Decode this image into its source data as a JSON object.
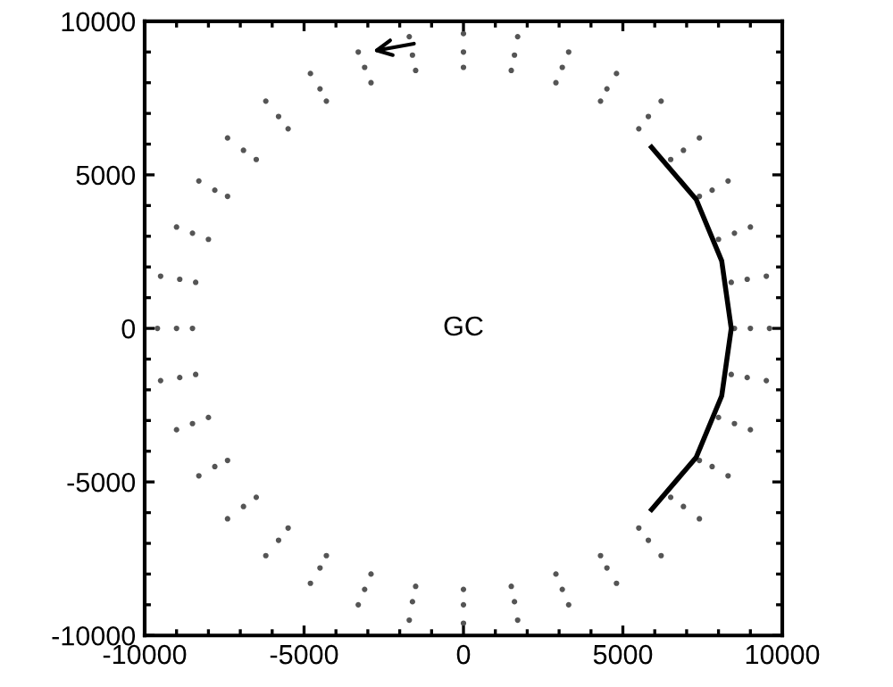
{
  "chart_data": {
    "type": "scatter",
    "xlim": [
      -10000,
      10000
    ],
    "ylim": [
      -10000,
      10000
    ],
    "xticks": [
      -10000,
      -5000,
      0,
      5000,
      10000
    ],
    "yticks": [
      -10000,
      -5000,
      0,
      5000,
      10000
    ],
    "grid": false,
    "legend": false,
    "annotations": [
      "GC"
    ],
    "series": [
      {
        "color": "#555555",
        "marker": "circle",
        "x": [
          8500,
          8400,
          8000,
          7400,
          6500,
          5500,
          4300,
          2900,
          1500,
          0,
          -1500,
          -2900,
          -4300,
          -5500,
          -6500,
          -7400,
          -8000,
          -8400,
          -8500,
          -8400,
          -8000,
          -7400,
          -6500,
          -5500,
          -4300,
          -2900,
          -1500,
          0,
          1500,
          2900,
          4300,
          5500,
          6500,
          7400,
          8000,
          8400
        ],
        "values": [
          0,
          1500,
          2900,
          4300,
          5500,
          6500,
          7400,
          8000,
          8400,
          8500,
          8400,
          8000,
          7400,
          6500,
          5500,
          4300,
          2900,
          1500,
          0,
          -1500,
          -2900,
          -4300,
          -5500,
          -6500,
          -7400,
          -8000,
          -8400,
          -8500,
          -8400,
          -8000,
          -7400,
          -6500,
          -5500,
          -4300,
          -2900,
          -1500
        ]
      },
      {
        "color": "#555555",
        "marker": "circle",
        "x": [
          9000,
          8900,
          8500,
          7800,
          6900,
          5800,
          4500,
          3100,
          1600,
          0,
          -1600,
          -3100,
          -4500,
          -5800,
          -6900,
          -7800,
          -8500,
          -8900,
          -9000,
          -8900,
          -8500,
          -7800,
          -6900,
          -5800,
          -4500,
          -3100,
          -1600,
          0,
          1600,
          3100,
          4500,
          5800,
          6900,
          7800,
          8500,
          8900
        ],
        "values": [
          0,
          1600,
          3100,
          4500,
          5800,
          6900,
          7800,
          8500,
          8900,
          9000,
          8900,
          8500,
          7800,
          6900,
          5800,
          4500,
          3100,
          1600,
          0,
          -1600,
          -3100,
          -4500,
          -5800,
          -6900,
          -7800,
          -8500,
          -8900,
          -9000,
          -8900,
          -8500,
          -7800,
          -6900,
          -5800,
          -4500,
          -3100,
          -1600
        ]
      },
      {
        "color": "#555555",
        "marker": "circle",
        "x": [
          9600,
          9500,
          9000,
          8300,
          7400,
          6200,
          4800,
          3300,
          1700,
          0,
          -1700,
          -3300,
          -4800,
          -6200,
          -7400,
          -8300,
          -9000,
          -9500,
          -9600,
          -9500,
          -9000,
          -8300,
          -7400,
          -6200,
          -4800,
          -3300,
          -1700,
          0,
          1700,
          3300,
          4800,
          6200,
          7400,
          8300,
          9000,
          9500
        ],
        "values": [
          0,
          1700,
          3300,
          4800,
          6200,
          7400,
          8300,
          9000,
          9500,
          9600,
          9500,
          9000,
          8300,
          7400,
          6200,
          4800,
          3300,
          1700,
          0,
          -1700,
          -3300,
          -4800,
          -6200,
          -7400,
          -8300,
          -9000,
          -9500,
          -9600,
          -9500,
          -9000,
          -8300,
          -7400,
          -6200,
          -4800,
          -3300,
          -1700
        ]
      },
      {
        "type": "line",
        "color": "#000000",
        "line_style": "solid",
        "marker": "none",
        "x": [
          5900,
          7300,
          8100,
          8400,
          8100,
          7300,
          5900
        ],
        "values": [
          5900,
          4200,
          2200,
          0,
          -2200,
          -4200,
          -5900
        ]
      }
    ]
  }
}
